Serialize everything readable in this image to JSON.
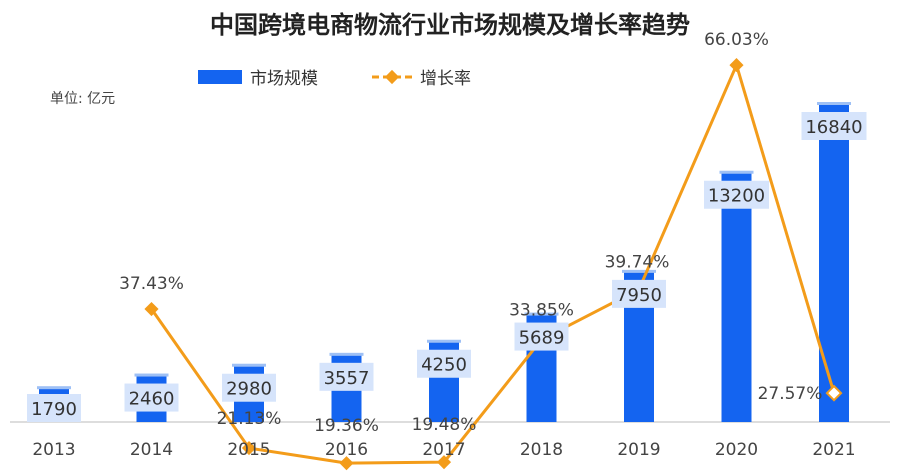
{
  "chart_data": {
    "type": "bar",
    "title": "中国跨境电商物流行业市场规模及增长率趋势",
    "unit_label": "单位: 亿元",
    "categories": [
      "2013",
      "2014",
      "2015",
      "2016",
      "2017",
      "2018",
      "2019",
      "2020",
      "2021"
    ],
    "series": [
      {
        "name": "市场规模",
        "type": "bar",
        "color": "#1464f0",
        "values": [
          1790,
          2460,
          2980,
          3557,
          4250,
          5689,
          7950,
          13200,
          16840
        ],
        "labels": [
          "1790",
          "2460",
          "2980",
          "3557",
          "4250",
          "5689",
          "7950",
          "13200",
          "16840"
        ]
      },
      {
        "name": "增长率",
        "type": "line",
        "color": "#f39c1a",
        "values": [
          null,
          37.43,
          21.13,
          19.36,
          19.48,
          33.85,
          39.74,
          66.03,
          27.57
        ],
        "labels": [
          null,
          "37.43%",
          "21.13%",
          "19.36%",
          "19.48%",
          "33.85%",
          "39.74%",
          "66.03%",
          "27.57%"
        ]
      }
    ],
    "legend_position": "top-center",
    "grid": false
  }
}
